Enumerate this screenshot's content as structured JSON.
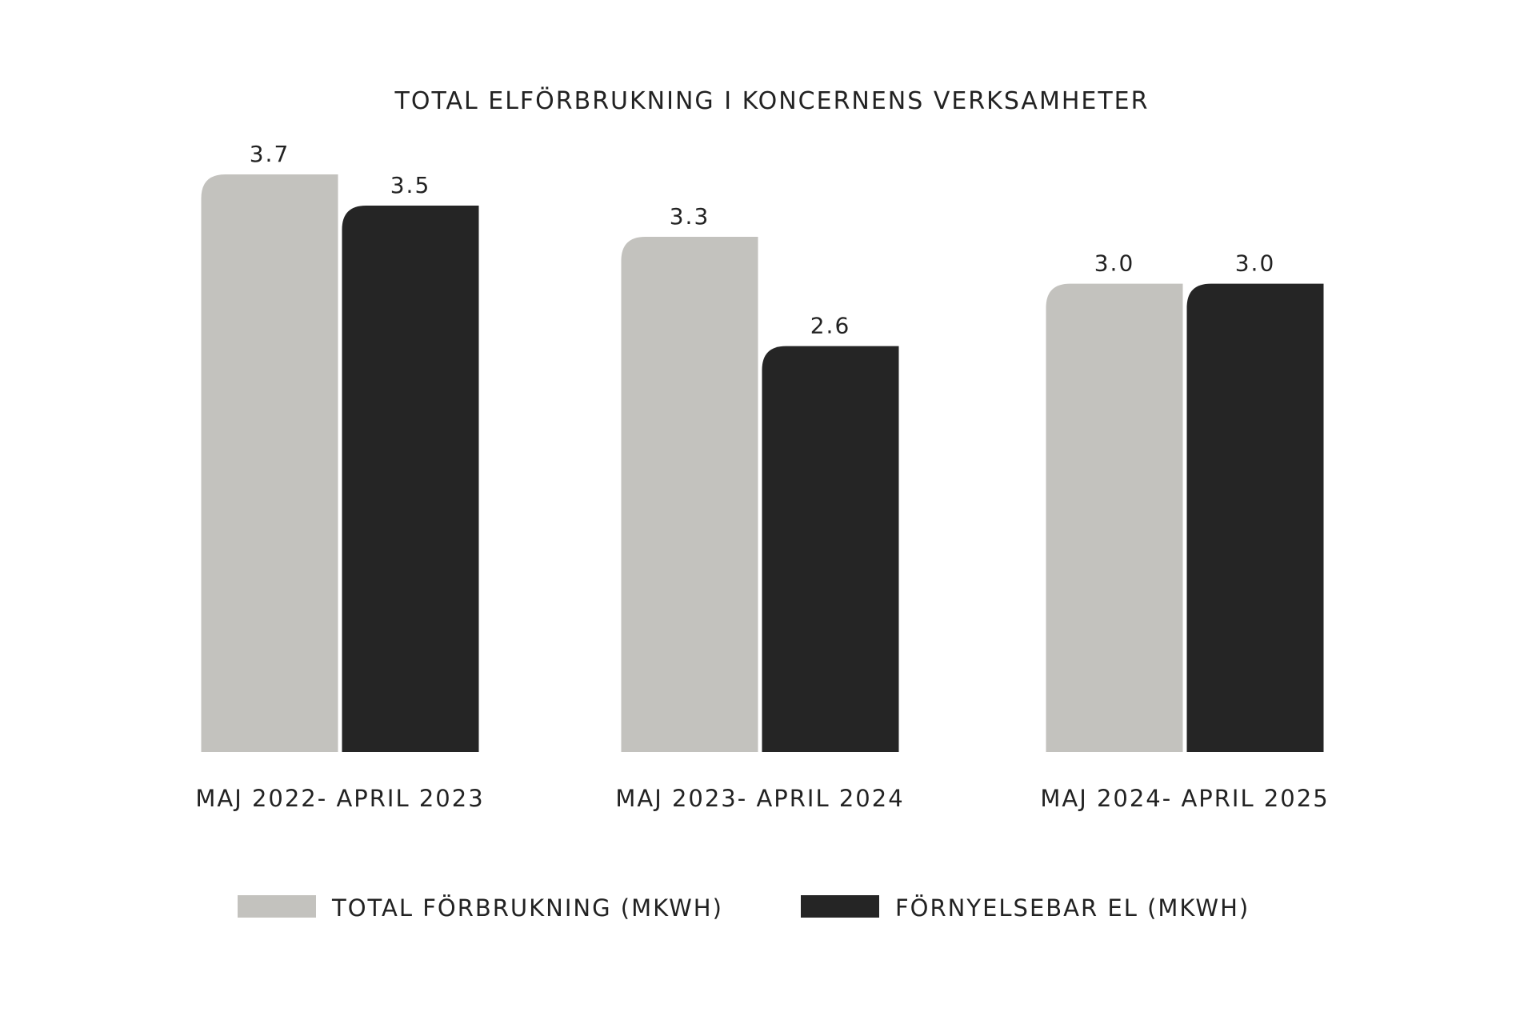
{
  "chart_data": {
    "type": "bar",
    "title": "TOTAL ELFÖRBRUKNING I KONCERNENS VERKSAMHETER",
    "categories": [
      "MAJ 2022- APRIL 2023",
      "MAJ 2023- APRIL 2024",
      "MAJ 2024- APRIL 2025"
    ],
    "series": [
      {
        "name": "TOTAL FÖRBRUKNING (MKWH)",
        "color": "#c3c2be",
        "values": [
          3.7,
          3.3,
          3.0
        ],
        "value_labels": [
          "3.7",
          "3.3",
          "3.0"
        ]
      },
      {
        "name": "FÖRNYELSEBAR EL (MKWH)",
        "color": "#252525",
        "values": [
          3.5,
          2.6,
          3.0
        ],
        "value_labels": [
          "3.5",
          "2.6",
          "3.0"
        ]
      }
    ]
  }
}
